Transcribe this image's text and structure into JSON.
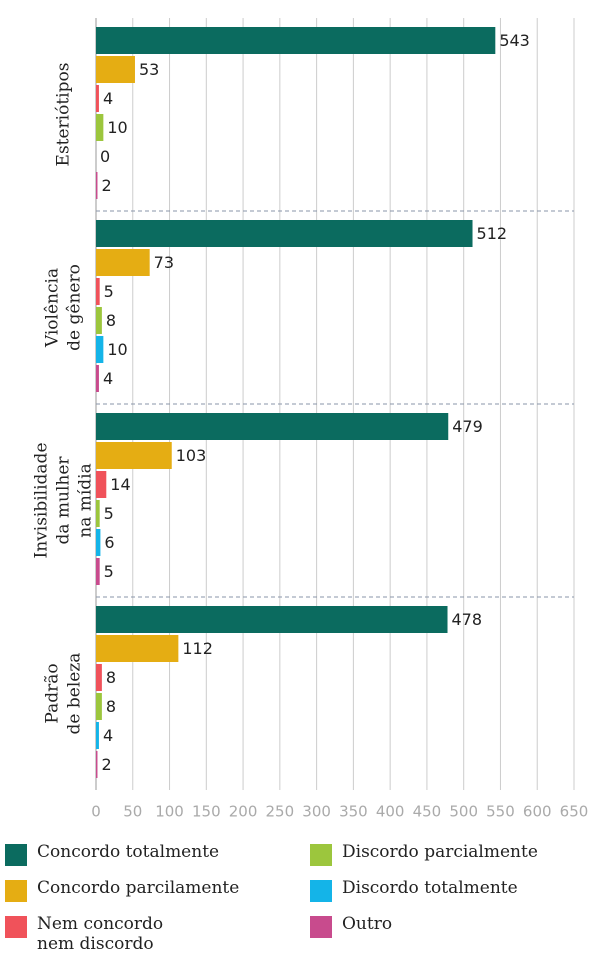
{
  "chart_data": {
    "type": "bar",
    "orientation": "horizontal",
    "categories": [
      [
        "Esteriótipos"
      ],
      [
        "Violência",
        "de gênero"
      ],
      [
        "Invisibilidade",
        "da mulher",
        "na mídia"
      ],
      [
        "Padrão",
        "de beleza"
      ]
    ],
    "series": [
      {
        "name": "Concordo totalmente",
        "color": "#0b6b5f",
        "values": [
          543,
          512,
          479,
          478
        ]
      },
      {
        "name": "Concordo parcilamente",
        "color": "#e5ad13",
        "values": [
          53,
          73,
          103,
          112
        ]
      },
      {
        "name": "Nem concordo nem discordo",
        "color": "#f0525a",
        "values": [
          4,
          5,
          14,
          8
        ]
      },
      {
        "name": "Discordo parcialmente",
        "color": "#9cc63d",
        "values": [
          10,
          8,
          5,
          8
        ]
      },
      {
        "name": "Discordo totalmente",
        "color": "#14b4e8",
        "values": [
          0,
          10,
          6,
          4
        ]
      },
      {
        "name": "Outro",
        "color": "#c84b8d",
        "values": [
          2,
          4,
          5,
          2
        ]
      }
    ],
    "xlim": [
      0,
      650
    ],
    "xticks": [
      0,
      50,
      100,
      150,
      200,
      250,
      300,
      350,
      400,
      450,
      500,
      550,
      600,
      650
    ],
    "grid": true
  }
}
